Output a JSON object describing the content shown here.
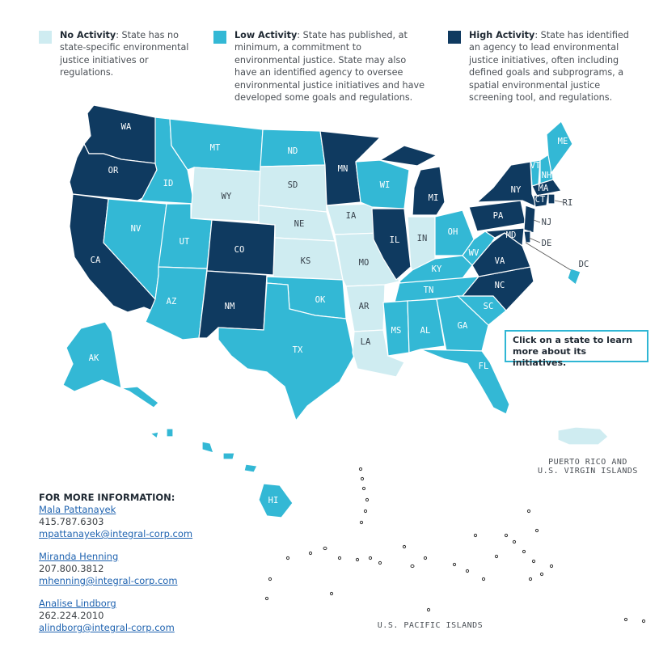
{
  "colors": {
    "none": "#cfecf1",
    "low": "#33b8d5",
    "high": "#0f3a60"
  },
  "legend": [
    {
      "key": "none",
      "term": "No Activity",
      "desc": ": State has no state-specific environmental justice initiatives or regulations."
    },
    {
      "key": "low",
      "term": "Low Activity",
      "desc": ": State has published, at minimum, a commitment to environmental justice. State may also have an identified agency to oversee environmental justice initiatives and have developed some goals and regulations."
    },
    {
      "key": "high",
      "term": "High Activity",
      "desc": ": State has identified an agency to lead environmental justice initiatives, often including defined goals and subprograms, a spatial environmental justice screening tool, and regulations."
    }
  ],
  "states": {
    "WA": "high",
    "OR": "high",
    "CA": "high",
    "ID": "low",
    "NV": "low",
    "MT": "low",
    "WY": "none",
    "UT": "low",
    "AZ": "low",
    "CO": "high",
    "NM": "high",
    "ND": "low",
    "SD": "none",
    "NE": "none",
    "KS": "none",
    "OK": "low",
    "TX": "low",
    "MN": "high",
    "IA": "none",
    "MO": "none",
    "AR": "none",
    "LA": "none",
    "WI": "low",
    "IL": "high",
    "MI": "high",
    "IN": "none",
    "OH": "low",
    "KY": "low",
    "TN": "low",
    "MS": "low",
    "AL": "low",
    "GA": "low",
    "FL": "low",
    "SC": "low",
    "NC": "high",
    "VA": "high",
    "WV": "low",
    "PA": "high",
    "NY": "high",
    "VT": "low",
    "NH": "low",
    "ME": "low",
    "MA": "high",
    "CT": "high",
    "RI": "high",
    "NJ": "high",
    "DE": "high",
    "MD": "high",
    "DC": "low",
    "AK": "low",
    "HI": "low",
    "PR": "none"
  },
  "cta_text": "Click on a state to learn more about its initiatives.",
  "regions": {
    "pr": "PUERTO RICO AND\nU.S. VIRGIN ISLANDS",
    "pacific": "U.S. PACIFIC ISLANDS"
  },
  "contact": {
    "heading": "FOR MORE INFORMATION:",
    "people": [
      {
        "name": "Mala Pattanayek",
        "phone": "415.787.6303",
        "email": "mpattanayek@integral-corp.com"
      },
      {
        "name": "Miranda Henning",
        "phone": "207.800.3812",
        "email": "mhenning@integral-corp.com"
      },
      {
        "name": "Analise Lindborg",
        "phone": "262.224.2010",
        "email": "alindborg@integral-corp.com"
      }
    ]
  }
}
